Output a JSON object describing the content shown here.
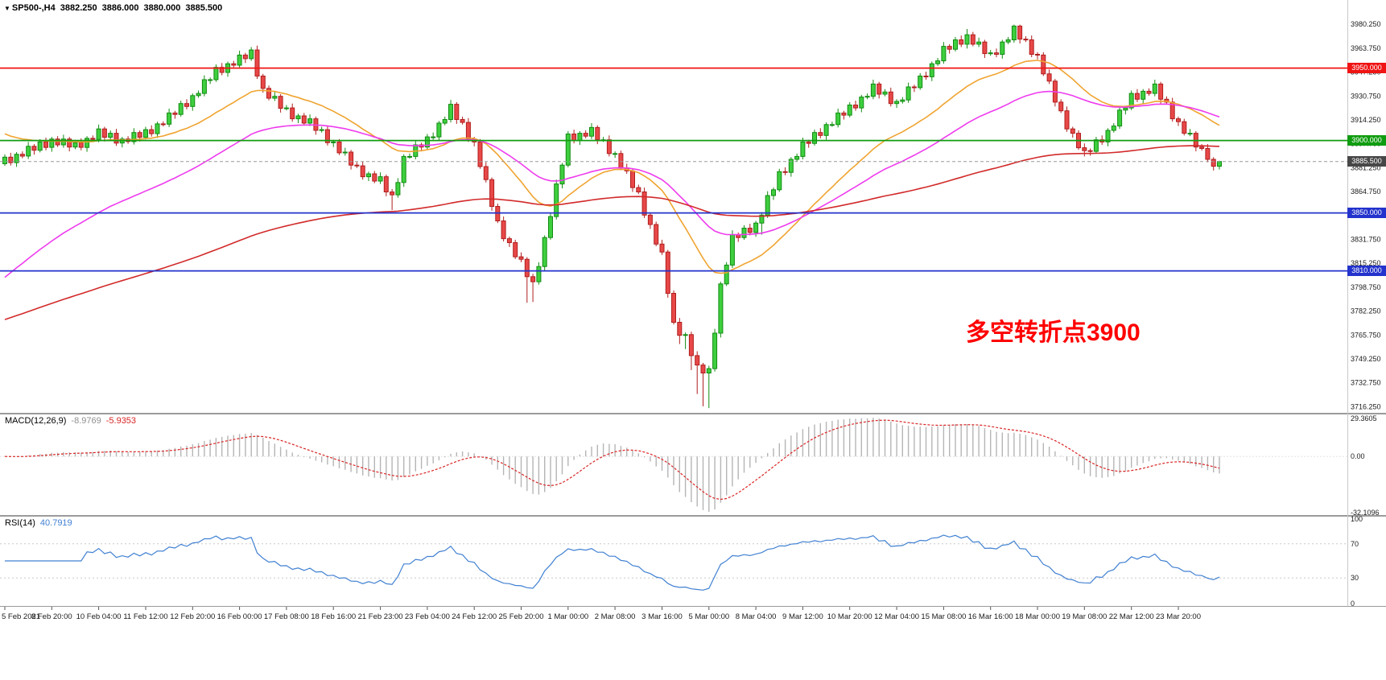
{
  "header": {
    "symbol": "SP500-,H4",
    "open": "3882.250",
    "high": "3886.000",
    "low": "3880.000",
    "close": "3885.500"
  },
  "annotation": {
    "text": "多空转折点3900",
    "color": "#ff0000"
  },
  "chart_data": {
    "type": "candlestick",
    "symbol": "SP500-",
    "timeframe": "H4",
    "up_color": "#118b11",
    "up_fill": "#3ecf3e",
    "down_color": "#b01e1e",
    "down_fill": "#e84848",
    "main_scale": {
      "max": 3997,
      "min": 3712
    },
    "price_ticks": [
      "3980.250",
      "3963.750",
      "3947.250",
      "3930.750",
      "3914.250",
      "3897.750",
      "3881.250",
      "3864.750",
      "3848.250",
      "3831.750",
      "3815.250",
      "3798.750",
      "3782.250",
      "3765.750",
      "3749.250",
      "3732.750",
      "3716.250"
    ],
    "time_labels": [
      "5 Feb 2021",
      "8 Feb 20:00",
      "10 Feb 04:00",
      "11 Feb 12:00",
      "12 Feb 20:00",
      "16 Feb 00:00",
      "17 Feb 08:00",
      "18 Feb 16:00",
      "21 Feb 23:00",
      "23 Feb 04:00",
      "24 Feb 12:00",
      "25 Feb 20:00",
      "1 Mar 00:00",
      "2 Mar 08:00",
      "3 Mar 16:00",
      "5 Mar 00:00",
      "8 Mar 04:00",
      "9 Mar 12:00",
      "10 Mar 20:00",
      "12 Mar 04:00",
      "15 Mar 08:00",
      "16 Mar 16:00",
      "18 Mar 00:00",
      "19 Mar 08:00",
      "22 Mar 12:00",
      "23 Mar 20:00"
    ],
    "bars_per_time_label": 8,
    "levels": [
      {
        "value": 3950,
        "label": "3950.000",
        "color": "#f01414",
        "badge": "#f01414"
      },
      {
        "value": 3900,
        "label": "3900.000",
        "color": "#109c10",
        "badge": "#109c10"
      },
      {
        "value": 3850,
        "label": "3850.000",
        "color": "#2333cc",
        "badge": "#2333cc"
      },
      {
        "value": 3810,
        "label": "3810.000",
        "color": "#2333cc",
        "badge": "#2333cc"
      }
    ],
    "current_price": {
      "value": 3885.5,
      "label": "3885.500",
      "badge": "#474747",
      "line_color": "#999999"
    },
    "moving_averages": [
      {
        "name": "fast-ma",
        "period": 24,
        "seed": 3906,
        "color": "#f0a431"
      },
      {
        "name": "medium-ma",
        "period": 48,
        "seed": 3802,
        "color": "#ee3cee"
      },
      {
        "name": "slow-ma",
        "period": 160,
        "seed": 3775,
        "color": "#d22a2a"
      }
    ],
    "indicators": {
      "macd": {
        "label": "MACD(12,26,9)",
        "value_main": "-8.9769",
        "value_signal": "-5.9353",
        "fast": 12,
        "slow": 26,
        "signal": 9,
        "histogram_color": "#b5b5b5",
        "signal_color": "#d92525",
        "axis_labels": {
          "max": "29.3605",
          "zero": "0.00",
          "min": "-32.1096"
        }
      },
      "rsi": {
        "label": "RSI(14)",
        "value": "40.7919",
        "period": 14,
        "color": "#4181d2",
        "level_color": "#c9c9c9",
        "axis_labels": [
          {
            "label": "100",
            "value": 100
          },
          {
            "label": "70",
            "value": 70
          },
          {
            "label": "30",
            "value": 30
          },
          {
            "label": "0",
            "value": 0
          }
        ]
      }
    },
    "candles": [
      [
        3884,
        3890.5,
        3882.5,
        3888.5
      ],
      [
        3888.5,
        3891.5,
        3882.75,
        3884.75
      ],
      [
        3884.75,
        3892,
        3881.75,
        3890.5
      ],
      [
        3890.5,
        3892.5,
        3887.75,
        3889.25
      ],
      [
        3889.25,
        3899,
        3887.25,
        3896
      ],
      [
        3896,
        3897.5,
        3890.25,
        3893.25
      ],
      [
        3893.25,
        3901,
        3891.75,
        3899
      ],
      [
        3899,
        3902,
        3893.25,
        3895.25
      ],
      [
        3895.25,
        3902.5,
        3892.25,
        3901
      ],
      [
        3901,
        3903,
        3895.5,
        3897
      ],
      [
        3897,
        3904,
        3895,
        3901
      ],
      [
        3901,
        3902.5,
        3892.5,
        3895.5
      ],
      [
        3895.5,
        3900.5,
        3894,
        3898.5
      ],
      [
        3898.5,
        3901.5,
        3893.25,
        3895.25
      ],
      [
        3895.25,
        3903,
        3892.25,
        3901.5
      ],
      [
        3901.5,
        3903.5,
        3899.25,
        3900.75
      ],
      [
        3900.75,
        3911,
        3898.75,
        3908
      ],
      [
        3908,
        3909.5,
        3899.25,
        3902.25
      ],
      [
        3902.25,
        3907,
        3900.75,
        3905
      ],
      [
        3905,
        3908,
        3896.25,
        3898.25
      ],
      [
        3898.25,
        3902.5,
        3895.25,
        3901
      ],
      [
        3901,
        3903,
        3897.75,
        3899.25
      ],
      [
        3899.25,
        3908.5,
        3897.25,
        3905.5
      ],
      [
        3905.5,
        3907,
        3899.25,
        3902.25
      ],
      [
        3902.25,
        3909.5,
        3900.75,
        3907.5
      ],
      [
        3907.5,
        3910.5,
        3902.75,
        3904.75
      ],
      [
        3904.75,
        3913,
        3901.75,
        3911.5
      ],
      [
        3911.5,
        3913.25,
        3909.75,
        3911.25
      ],
      [
        3911.25,
        3922,
        3909.25,
        3919
      ],
      [
        3919,
        3920.5,
        3915,
        3918
      ],
      [
        3918,
        3927.5,
        3916.5,
        3925.5
      ],
      [
        3925.5,
        3928.5,
        3921.5,
        3923.5
      ],
      [
        3923.5,
        3932.5,
        3920.5,
        3931
      ],
      [
        3931,
        3934.5,
        3929.5,
        3932.5
      ],
      [
        3932.5,
        3945,
        3930.5,
        3942
      ],
      [
        3942,
        3943.5,
        3939,
        3942
      ],
      [
        3942,
        3952.5,
        3940.5,
        3950.5
      ],
      [
        3950.5,
        3953.5,
        3945,
        3947
      ],
      [
        3947,
        3954.5,
        3944,
        3953
      ],
      [
        3953,
        3955,
        3950.5,
        3952
      ],
      [
        3952,
        3962,
        3950,
        3959
      ],
      [
        3959,
        3960.5,
        3953.5,
        3956.5
      ],
      [
        3956.5,
        3964.5,
        3955,
        3962.5
      ],
      [
        3962.5,
        3965.5,
        3942.5,
        3944.5
      ],
      [
        3944.5,
        3946,
        3933,
        3936
      ],
      [
        3936,
        3938,
        3927.75,
        3929.25
      ],
      [
        3929.25,
        3933.5,
        3927.25,
        3930.5
      ],
      [
        3930.5,
        3932,
        3919.25,
        3922.25
      ],
      [
        3922.25,
        3924.5,
        3920.75,
        3922.5
      ],
      [
        3922.5,
        3925.5,
        3913,
        3915
      ],
      [
        3915,
        3918.5,
        3912,
        3917
      ],
      [
        3917,
        3919,
        3910.5,
        3912
      ],
      [
        3912,
        3918,
        3910,
        3915
      ],
      [
        3915,
        3916.5,
        3904,
        3907
      ],
      [
        3907,
        3909.5,
        3905.5,
        3907.5
      ],
      [
        3907.5,
        3910.5,
        3896.5,
        3898.5
      ],
      [
        3898.5,
        3900.5,
        3895.5,
        3899
      ],
      [
        3899,
        3901,
        3890,
        3891.5
      ],
      [
        3891.5,
        3895,
        3889.5,
        3892
      ],
      [
        3892,
        3893.5,
        3880,
        3883
      ],
      [
        3883,
        3885,
        3881,
        3882.5
      ],
      [
        3882.5,
        3885.5,
        3873,
        3875
      ],
      [
        3875,
        3878.5,
        3872,
        3877
      ],
      [
        3877,
        3879,
        3870.5,
        3872
      ],
      [
        3872,
        3878,
        3870,
        3875
      ],
      [
        3875,
        3876.5,
        3861.5,
        3864.5
      ],
      [
        3864.5,
        3866.5,
        3852,
        3862.5
      ],
      [
        3862.5,
        3874,
        3860.5,
        3871
      ],
      [
        3871,
        3890.5,
        3868,
        3889
      ],
      [
        3889,
        3891,
        3887.5,
        3889
      ],
      [
        3889,
        3900,
        3887,
        3897
      ],
      [
        3897,
        3898.5,
        3892.5,
        3895.5
      ],
      [
        3895.5,
        3904.5,
        3894,
        3902.5
      ],
      [
        3902.5,
        3905.5,
        3900.5,
        3902.5
      ],
      [
        3902.5,
        3913.5,
        3899.5,
        3912
      ],
      [
        3912,
        3916.5,
        3910.5,
        3914.5
      ],
      [
        3914.5,
        3928,
        3912.5,
        3925
      ],
      [
        3925,
        3926.5,
        3911.5,
        3914.5
      ],
      [
        3914.5,
        3916.5,
        3911,
        3912.5
      ],
      [
        3912.5,
        3915.5,
        3899,
        3901
      ],
      [
        3901,
        3902.5,
        3896,
        3899
      ],
      [
        3899,
        3901,
        3880.5,
        3882
      ],
      [
        3882,
        3885,
        3871,
        3873
      ],
      [
        3873,
        3874.5,
        3851.5,
        3854.5
      ],
      [
        3854.5,
        3856.5,
        3843,
        3844.5
      ],
      [
        3844.5,
        3847.5,
        3830.25,
        3832.25
      ],
      [
        3832.25,
        3833.75,
        3826.5,
        3829.5
      ],
      [
        3829.5,
        3831.5,
        3818.25,
        3819.75
      ],
      [
        3819.75,
        3822.75,
        3816,
        3818
      ],
      [
        3818,
        3819.5,
        3788,
        3806
      ],
      [
        3806,
        3808,
        3788.5,
        3802.5
      ],
      [
        3802.5,
        3816,
        3800.5,
        3813
      ],
      [
        3813,
        3834.5,
        3810,
        3833
      ],
      [
        3833,
        3849.5,
        3831.5,
        3847.5
      ],
      [
        3847.5,
        3873,
        3845.5,
        3870
      ],
      [
        3870,
        3884.5,
        3867,
        3883
      ],
      [
        3883,
        3906.5,
        3881.5,
        3904.5
      ],
      [
        3904.5,
        3907.5,
        3898,
        3900
      ],
      [
        3900,
        3906.5,
        3897,
        3905
      ],
      [
        3905,
        3907,
        3901.5,
        3903
      ],
      [
        3903,
        3912,
        3901,
        3909
      ],
      [
        3909,
        3910.5,
        3897.5,
        3900.5
      ],
      [
        3900.5,
        3902.5,
        3899,
        3900.5
      ],
      [
        3900.5,
        3903.5,
        3889,
        3891
      ],
      [
        3891,
        3892.5,
        3888,
        3891
      ],
      [
        3891,
        3893,
        3879.5,
        3881
      ],
      [
        3881,
        3884,
        3877,
        3879
      ],
      [
        3879,
        3880.5,
        3864.5,
        3867.5
      ],
      [
        3867.5,
        3869.5,
        3863,
        3864.5
      ],
      [
        3864.5,
        3867.5,
        3846.5,
        3848.5
      ],
      [
        3848.5,
        3850,
        3839,
        3842
      ],
      [
        3842,
        3844,
        3827,
        3828.5
      ],
      [
        3828.5,
        3831.5,
        3821,
        3823
      ],
      [
        3823,
        3824.5,
        3791.5,
        3794.5
      ],
      [
        3794.5,
        3796.5,
        3773,
        3774.5
      ],
      [
        3774.5,
        3777.5,
        3759.5,
        3765.5
      ],
      [
        3765.5,
        3767.5,
        3756,
        3766
      ],
      [
        3766,
        3768,
        3741.5,
        3751.5
      ],
      [
        3751.5,
        3754.5,
        3725,
        3745
      ],
      [
        3745,
        3746.5,
        3716.5,
        3739.5
      ],
      [
        3739.5,
        3744.5,
        3715.25,
        3742.5
      ],
      [
        3742.5,
        3770,
        3740.5,
        3767
      ],
      [
        3767,
        3802.5,
        3764,
        3801
      ],
      [
        3801,
        3816,
        3799.5,
        3814
      ],
      [
        3814,
        3838,
        3812,
        3835
      ],
      [
        3835,
        3836.5,
        3830,
        3833
      ],
      [
        3833,
        3841.5,
        3831.5,
        3839.5
      ],
      [
        3839.5,
        3842.5,
        3834.5,
        3836.5
      ],
      [
        3836.5,
        3844.5,
        3833.5,
        3843
      ],
      [
        3843,
        3850.5,
        3835,
        3848.5
      ],
      [
        3848.5,
        3865,
        3846.5,
        3862
      ],
      [
        3862,
        3867.5,
        3859,
        3866
      ],
      [
        3866,
        3880.5,
        3864.5,
        3878.5
      ],
      [
        3878.5,
        3881.5,
        3876,
        3878
      ],
      [
        3878,
        3888.5,
        3875,
        3887
      ],
      [
        3887,
        3891,
        3885.5,
        3889
      ],
      [
        3889,
        3902,
        3887,
        3899
      ],
      [
        3899,
        3900.5,
        3895,
        3898
      ],
      [
        3898,
        3907.5,
        3896.5,
        3905.5
      ],
      [
        3905.5,
        3908.5,
        3901.5,
        3903.5
      ],
      [
        3903.5,
        3912.5,
        3900.5,
        3911
      ],
      [
        3911,
        3913,
        3909.5,
        3911
      ],
      [
        3911,
        3922,
        3909,
        3919
      ],
      [
        3919,
        3920.5,
        3914.5,
        3917.5
      ],
      [
        3917.5,
        3926.5,
        3916,
        3924.5
      ],
      [
        3924.5,
        3927.5,
        3920.5,
        3922.5
      ],
      [
        3922.5,
        3931.5,
        3919.5,
        3930
      ],
      [
        3930,
        3932.5,
        3928.5,
        3930.5
      ],
      [
        3930.5,
        3942,
        3928.5,
        3939
      ],
      [
        3939,
        3940.5,
        3929,
        3932
      ],
      [
        3932,
        3935.5,
        3930.5,
        3933.5
      ],
      [
        3933.5,
        3936.5,
        3923.5,
        3925.5
      ],
      [
        3925.5,
        3928.5,
        3922.5,
        3927
      ],
      [
        3927,
        3930,
        3925.5,
        3928
      ],
      [
        3928,
        3940,
        3926,
        3937
      ],
      [
        3937,
        3938.5,
        3933.5,
        3936.5
      ],
      [
        3936.5,
        3946.5,
        3935,
        3944.5
      ],
      [
        3944.5,
        3947.5,
        3942,
        3944
      ],
      [
        3944,
        3954.5,
        3941,
        3953
      ],
      [
        3953,
        3957,
        3951.5,
        3955
      ],
      [
        3955,
        3968,
        3953,
        3965
      ],
      [
        3965,
        3966.5,
        3960,
        3963
      ],
      [
        3963,
        3971.5,
        3961.5,
        3969.5
      ],
      [
        3969.5,
        3972.5,
        3964.5,
        3966.5
      ],
      [
        3966.5,
        3977,
        3963.5,
        3973
      ],
      [
        3973,
        3975,
        3965,
        3966.5
      ],
      [
        3966.5,
        3971,
        3964.5,
        3968
      ],
      [
        3968,
        3969.5,
        3957,
        3960
      ],
      [
        3960,
        3962.5,
        3958.5,
        3960.5
      ],
      [
        3960.5,
        3963.5,
        3957.5,
        3959.5
      ],
      [
        3959.5,
        3969.5,
        3956.5,
        3968
      ],
      [
        3968,
        3971.5,
        3966.5,
        3969.5
      ],
      [
        3969.5,
        3980,
        3967.5,
        3979
      ],
      [
        3979,
        3980,
        3967,
        3970
      ],
      [
        3970,
        3972,
        3968,
        3969.5
      ],
      [
        3969.5,
        3972.5,
        3957.5,
        3959.5
      ],
      [
        3959.5,
        3961,
        3956,
        3959
      ],
      [
        3959,
        3961,
        3944.5,
        3946
      ],
      [
        3946,
        3949,
        3939,
        3941
      ],
      [
        3941,
        3942.5,
        3923.5,
        3926.5
      ],
      [
        3926.5,
        3928.5,
        3919,
        3920.5
      ],
      [
        3920.5,
        3923.5,
        3906,
        3908
      ],
      [
        3908,
        3909.5,
        3902,
        3905
      ],
      [
        3905,
        3907,
        3893.5,
        3895
      ],
      [
        3895,
        3898,
        3889,
        3893
      ],
      [
        3893,
        3894.5,
        3889.5,
        3892.5
      ],
      [
        3892.5,
        3902.5,
        3891,
        3900.5
      ],
      [
        3900.5,
        3903.5,
        3897,
        3899
      ],
      [
        3899,
        3908.5,
        3896,
        3907
      ],
      [
        3907,
        3912,
        3905.5,
        3910
      ],
      [
        3910,
        3924,
        3908,
        3921
      ],
      [
        3921,
        3924,
        3918,
        3922.5
      ],
      [
        3922.5,
        3934.5,
        3921,
        3932.5
      ],
      [
        3932.5,
        3935.5,
        3926.5,
        3928.5
      ],
      [
        3928.5,
        3935.5,
        3925.5,
        3934
      ],
      [
        3934,
        3936,
        3931,
        3932.5
      ],
      [
        3932.5,
        3942,
        3930.5,
        3939
      ],
      [
        3939,
        3940.5,
        3925.5,
        3928.5
      ],
      [
        3928.5,
        3930.5,
        3925,
        3926.5
      ],
      [
        3926.5,
        3929.5,
        3913,
        3915
      ],
      [
        3915,
        3916.5,
        3910,
        3913
      ],
      [
        3913,
        3915,
        3903.5,
        3905
      ],
      [
        3905,
        3908,
        3903,
        3905
      ],
      [
        3905,
        3906.5,
        3892.5,
        3895.5
      ],
      [
        3895.5,
        3897.5,
        3893,
        3894.5
      ],
      [
        3894.5,
        3897.5,
        3885,
        3887
      ],
      [
        3887,
        3888.5,
        3879.25,
        3882.25
      ],
      [
        3882.25,
        3886,
        3880,
        3885.5
      ]
    ]
  }
}
